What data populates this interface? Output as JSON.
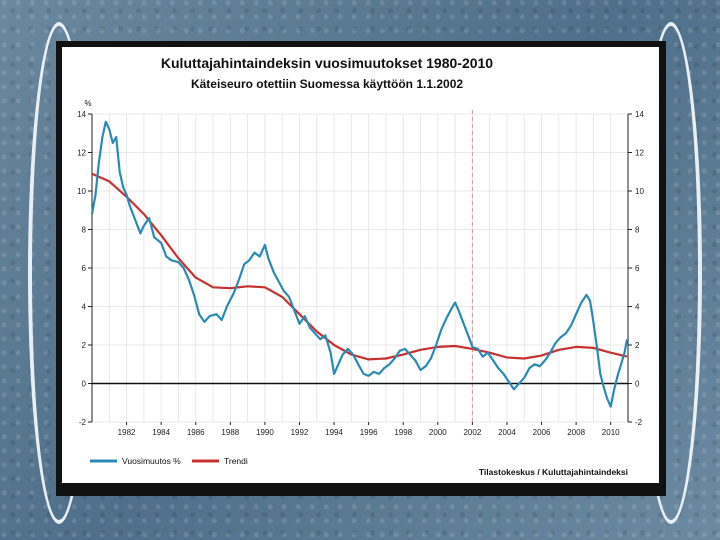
{
  "chart_data": {
    "type": "line",
    "title": "Kuluttajahintaindeksin vuosimuutokset 1980-2010",
    "subtitle": "Käteiseuro otettiin Suomessa käyttöön 1.1.2002",
    "ylabel": "%",
    "source": "Tilastokeskus / Kuluttajahintaindeksi",
    "xlim": [
      1980,
      2011
    ],
    "ylim": [
      -2,
      14
    ],
    "x_ticks": [
      1982,
      1984,
      1986,
      1988,
      1990,
      1992,
      1994,
      1996,
      1998,
      2000,
      2002,
      2004,
      2006,
      2008,
      2010
    ],
    "x_tick_labels": [
      "1982",
      "1984",
      "1986",
      "1988",
      "1990",
      "1992",
      "1994",
      "1996",
      "1998",
      "2000",
      "2002",
      "2004",
      "2006",
      "2008",
      "2010"
    ],
    "y_ticks": [
      -2,
      0,
      2,
      4,
      6,
      8,
      10,
      12,
      14
    ],
    "y_tick_labels": [
      "-2",
      "0",
      "2",
      "4",
      "6",
      "8",
      "10",
      "12",
      "14"
    ],
    "grid": true,
    "reference_line": {
      "x": 2002,
      "style": "dashed",
      "color": "#c99a9a"
    },
    "legend_position": "bottom-left",
    "series": [
      {
        "name": "Vuosimuutos %",
        "color": "#2b8ab5",
        "points": [
          [
            1980.0,
            8.8
          ],
          [
            1980.2,
            9.8
          ],
          [
            1980.4,
            11.5
          ],
          [
            1980.6,
            12.8
          ],
          [
            1980.8,
            13.6
          ],
          [
            1981.0,
            13.2
          ],
          [
            1981.2,
            12.5
          ],
          [
            1981.4,
            12.8
          ],
          [
            1981.6,
            11.0
          ],
          [
            1981.8,
            10.2
          ],
          [
            1982.0,
            9.8
          ],
          [
            1982.2,
            9.2
          ],
          [
            1982.5,
            8.5
          ],
          [
            1982.8,
            7.8
          ],
          [
            1983.0,
            8.2
          ],
          [
            1983.3,
            8.6
          ],
          [
            1983.6,
            7.6
          ],
          [
            1984.0,
            7.3
          ],
          [
            1984.3,
            6.6
          ],
          [
            1984.6,
            6.4
          ],
          [
            1985.0,
            6.3
          ],
          [
            1985.3,
            6.0
          ],
          [
            1985.6,
            5.4
          ],
          [
            1985.9,
            4.6
          ],
          [
            1986.2,
            3.6
          ],
          [
            1986.5,
            3.2
          ],
          [
            1986.8,
            3.5
          ],
          [
            1987.2,
            3.6
          ],
          [
            1987.5,
            3.3
          ],
          [
            1987.8,
            4.0
          ],
          [
            1988.2,
            4.7
          ],
          [
            1988.5,
            5.4
          ],
          [
            1988.8,
            6.2
          ],
          [
            1989.1,
            6.4
          ],
          [
            1989.4,
            6.8
          ],
          [
            1989.7,
            6.6
          ],
          [
            1990.0,
            7.2
          ],
          [
            1990.2,
            6.5
          ],
          [
            1990.5,
            5.8
          ],
          [
            1990.8,
            5.3
          ],
          [
            1991.1,
            4.8
          ],
          [
            1991.4,
            4.5
          ],
          [
            1991.7,
            3.8
          ],
          [
            1992.0,
            3.1
          ],
          [
            1992.3,
            3.5
          ],
          [
            1992.6,
            2.9
          ],
          [
            1992.9,
            2.6
          ],
          [
            1993.2,
            2.3
          ],
          [
            1993.5,
            2.5
          ],
          [
            1993.8,
            1.6
          ],
          [
            1994.0,
            0.5
          ],
          [
            1994.2,
            0.9
          ],
          [
            1994.5,
            1.5
          ],
          [
            1994.8,
            1.8
          ],
          [
            1995.1,
            1.5
          ],
          [
            1995.4,
            1.0
          ],
          [
            1995.7,
            0.5
          ],
          [
            1996.0,
            0.4
          ],
          [
            1996.3,
            0.6
          ],
          [
            1996.6,
            0.5
          ],
          [
            1996.9,
            0.8
          ],
          [
            1997.2,
            1.0
          ],
          [
            1997.5,
            1.3
          ],
          [
            1997.8,
            1.7
          ],
          [
            1998.1,
            1.8
          ],
          [
            1998.4,
            1.5
          ],
          [
            1998.7,
            1.2
          ],
          [
            1999.0,
            0.7
          ],
          [
            1999.3,
            0.9
          ],
          [
            1999.6,
            1.3
          ],
          [
            1999.9,
            2.0
          ],
          [
            2000.2,
            2.8
          ],
          [
            2000.5,
            3.4
          ],
          [
            2000.8,
            3.9
          ],
          [
            2001.0,
            4.2
          ],
          [
            2001.2,
            3.8
          ],
          [
            2001.5,
            3.1
          ],
          [
            2001.8,
            2.4
          ],
          [
            2002.0,
            1.9
          ],
          [
            2002.3,
            1.8
          ],
          [
            2002.6,
            1.4
          ],
          [
            2002.9,
            1.6
          ],
          [
            2003.2,
            1.2
          ],
          [
            2003.5,
            0.8
          ],
          [
            2003.8,
            0.5
          ],
          [
            2004.1,
            0.1
          ],
          [
            2004.4,
            -0.3
          ],
          [
            2004.7,
            0.0
          ],
          [
            2005.0,
            0.3
          ],
          [
            2005.3,
            0.8
          ],
          [
            2005.6,
            1.0
          ],
          [
            2005.9,
            0.9
          ],
          [
            2006.2,
            1.2
          ],
          [
            2006.5,
            1.6
          ],
          [
            2006.8,
            2.1
          ],
          [
            2007.1,
            2.4
          ],
          [
            2007.4,
            2.6
          ],
          [
            2007.7,
            3.0
          ],
          [
            2008.0,
            3.6
          ],
          [
            2008.3,
            4.2
          ],
          [
            2008.6,
            4.6
          ],
          [
            2008.8,
            4.3
          ],
          [
            2009.0,
            3.2
          ],
          [
            2009.2,
            1.9
          ],
          [
            2009.4,
            0.5
          ],
          [
            2009.6,
            -0.2
          ],
          [
            2009.8,
            -0.8
          ],
          [
            2010.0,
            -1.2
          ],
          [
            2010.2,
            -0.3
          ],
          [
            2010.4,
            0.4
          ],
          [
            2010.6,
            1.0
          ],
          [
            2010.8,
            1.6
          ],
          [
            2010.95,
            2.3
          ]
        ]
      },
      {
        "name": "Trendi",
        "color": "#c83030",
        "points": [
          [
            1980.0,
            10.9
          ],
          [
            1981.0,
            10.5
          ],
          [
            1982.0,
            9.7
          ],
          [
            1983.0,
            8.8
          ],
          [
            1984.0,
            7.7
          ],
          [
            1985.0,
            6.5
          ],
          [
            1986.0,
            5.5
          ],
          [
            1987.0,
            5.0
          ],
          [
            1988.0,
            4.95
          ],
          [
            1989.0,
            5.05
          ],
          [
            1990.0,
            5.0
          ],
          [
            1991.0,
            4.5
          ],
          [
            1992.0,
            3.6
          ],
          [
            1993.0,
            2.7
          ],
          [
            1994.0,
            2.0
          ],
          [
            1995.0,
            1.5
          ],
          [
            1996.0,
            1.25
          ],
          [
            1997.0,
            1.3
          ],
          [
            1998.0,
            1.5
          ],
          [
            1999.0,
            1.75
          ],
          [
            2000.0,
            1.9
          ],
          [
            2001.0,
            1.95
          ],
          [
            2002.0,
            1.8
          ],
          [
            2003.0,
            1.6
          ],
          [
            2004.0,
            1.35
          ],
          [
            2005.0,
            1.3
          ],
          [
            2006.0,
            1.45
          ],
          [
            2007.0,
            1.75
          ],
          [
            2008.0,
            1.9
          ],
          [
            2009.0,
            1.85
          ],
          [
            2010.0,
            1.6
          ],
          [
            2010.95,
            1.4
          ]
        ]
      }
    ]
  }
}
